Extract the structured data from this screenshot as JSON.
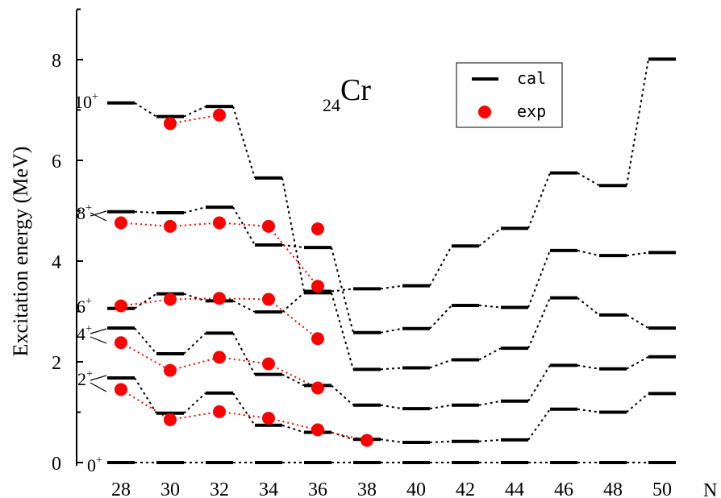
{
  "chart_data": {
    "type": "line",
    "element": {
      "sub": "24",
      "symbol": "Cr"
    },
    "ylabel": "Excitation energy (MeV)",
    "xlabel": "N",
    "xlim": [
      28,
      50
    ],
    "ylim": [
      0,
      9
    ],
    "x_ticks": [
      "28",
      "30",
      "32",
      "34",
      "36",
      "38",
      "40",
      "42",
      "44",
      "46",
      "48",
      "50"
    ],
    "y_ticks": [
      "0",
      "2",
      "4",
      "6",
      "8"
    ],
    "x_tick_values": [
      28,
      30,
      32,
      34,
      36,
      38,
      40,
      42,
      44,
      46,
      48,
      50
    ],
    "y_tick_values": [
      0,
      2,
      4,
      6,
      8
    ],
    "legend": {
      "position": "top-center",
      "cal": "cal",
      "exp": "exp"
    },
    "state_labels": [
      {
        "base": "0",
        "sup": "+",
        "y": 0
      },
      {
        "base": "2",
        "sup": "+",
        "y": 1.6
      },
      {
        "base": "4",
        "sup": "+",
        "y": 2.55
      },
      {
        "base": "6",
        "sup": "+",
        "y": 3.1
      },
      {
        "base": "8",
        "sup": "+",
        "y": 4.8
      },
      {
        "base": "10",
        "sup": "+",
        "y": 7.1
      }
    ],
    "calc_series": [
      {
        "state": "0+",
        "x": [
          28,
          30,
          32,
          34,
          36,
          38,
          40,
          42,
          44,
          46,
          48,
          50
        ],
        "values": [
          0,
          0,
          0,
          0,
          0,
          0,
          0,
          0,
          0,
          0,
          0,
          0
        ]
      },
      {
        "state": "2+",
        "x": [
          28,
          30,
          32,
          34,
          36,
          38,
          40,
          42,
          44,
          46,
          48,
          50
        ],
        "values": [
          1.68,
          0.98,
          1.38,
          0.74,
          0.6,
          0.46,
          0.4,
          0.42,
          0.45,
          1.06,
          1.0,
          1.37
        ]
      },
      {
        "state": "4+",
        "x": [
          28,
          30,
          32,
          34,
          36,
          38,
          40,
          42,
          44,
          46,
          48,
          50
        ],
        "values": [
          2.67,
          2.16,
          2.57,
          1.75,
          1.53,
          1.14,
          1.07,
          1.14,
          1.22,
          1.93,
          1.86,
          2.1
        ]
      },
      {
        "state": "6+",
        "x": [
          28,
          30,
          32,
          34,
          36,
          38,
          40,
          42,
          44,
          46,
          48,
          50
        ],
        "values": [
          3.06,
          3.35,
          3.21,
          2.99,
          3.37,
          1.85,
          1.88,
          2.04,
          2.27,
          3.27,
          2.93,
          2.67
        ]
      },
      {
        "state": "8+",
        "x": [
          28,
          30,
          32,
          34,
          36,
          38,
          40,
          42,
          44,
          46,
          48,
          50
        ],
        "values": [
          4.98,
          4.96,
          5.07,
          4.32,
          4.27,
          2.58,
          2.66,
          3.12,
          3.08,
          4.21,
          4.11,
          4.17
        ]
      },
      {
        "state": "10+",
        "x": [
          28,
          30,
          32,
          34,
          36,
          38,
          40,
          42,
          44,
          46,
          48,
          50
        ],
        "values": [
          7.14,
          6.87,
          7.07,
          5.65,
          3.4,
          3.45,
          3.51,
          4.3,
          4.65,
          5.75,
          5.5,
          8.01
        ]
      }
    ],
    "exp_series": [
      {
        "state": "2+",
        "x": [
          28,
          30,
          32,
          34,
          36,
          38
        ],
        "values": [
          1.45,
          0.85,
          1.01,
          0.88,
          0.65,
          0.44
        ]
      },
      {
        "state": "4+",
        "x": [
          28,
          30,
          32,
          34,
          36
        ],
        "values": [
          2.38,
          1.83,
          2.09,
          1.96,
          1.48
        ]
      },
      {
        "state": "6+",
        "x": [
          28,
          30,
          32,
          34,
          36
        ],
        "values": [
          3.11,
          3.24,
          3.26,
          3.24,
          2.46
        ]
      },
      {
        "state": "8+",
        "x": [
          28,
          30,
          32,
          34,
          36
        ],
        "values": [
          4.76,
          4.69,
          4.76,
          4.69,
          3.5
        ]
      },
      {
        "state": "10+",
        "x": [
          30,
          32
        ],
        "values": [
          6.73,
          6.9
        ]
      },
      {
        "state": "10+ (N=36)",
        "x": [
          36
        ],
        "values": [
          4.64
        ]
      }
    ]
  }
}
